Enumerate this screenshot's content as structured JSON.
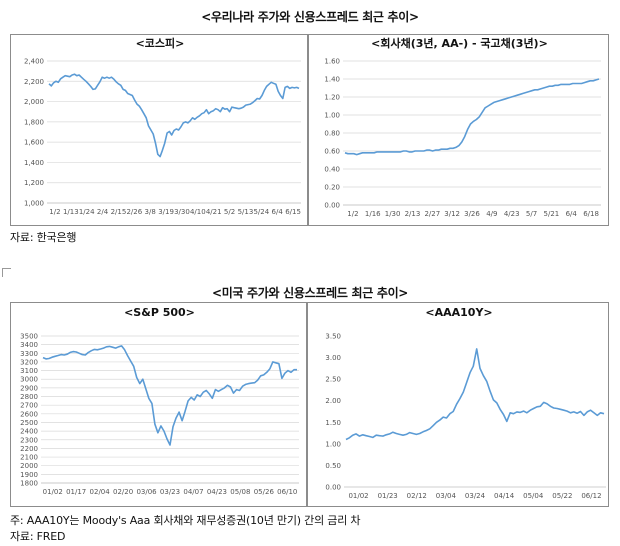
{
  "korea": {
    "title": "<우리나라 주가와 신용스프레드 최근 추이>",
    "source": "자료: 한국은행"
  },
  "us": {
    "title": "<미국 주가와 신용스프레드 최근 추이>",
    "note": "주: AAA10Y는 Moody's Aaa 회사채와 재무성증권(10년 만기) 간의 금리 차",
    "source": "자료: FRED"
  },
  "chart_data": [
    {
      "id": "kospi",
      "type": "line",
      "title": "<코스피>",
      "color": "#5b9bd5",
      "ylim": [
        1000,
        2400
      ],
      "yticks": [
        1000,
        1200,
        1400,
        1600,
        1800,
        2000,
        2200,
        2400
      ],
      "ytick_labels": [
        "1,000",
        "1,200",
        "1,400",
        "1,600",
        "1,800",
        "2,000",
        "2,200",
        "2,400"
      ],
      "xtick_labels": [
        "1/2",
        "1/13",
        "1/24",
        "2/4",
        "2/15",
        "2/26",
        "3/8",
        "3/19",
        "3/30",
        "4/10",
        "4/21",
        "5/2",
        "5/13",
        "5/24",
        "6/4",
        "6/15"
      ],
      "grid": true,
      "y": [
        2175,
        2155,
        2185,
        2200,
        2190,
        2225,
        2240,
        2255,
        2250,
        2245,
        2262,
        2270,
        2255,
        2262,
        2240,
        2220,
        2200,
        2175,
        2150,
        2120,
        2125,
        2160,
        2195,
        2240,
        2230,
        2240,
        2230,
        2240,
        2222,
        2195,
        2175,
        2160,
        2120,
        2110,
        2080,
        2070,
        2060,
        2015,
        1975,
        1955,
        1920,
        1880,
        1840,
        1760,
        1720,
        1680,
        1590,
        1480,
        1457,
        1520,
        1590,
        1690,
        1705,
        1670,
        1715,
        1730,
        1720,
        1750,
        1790,
        1800,
        1790,
        1810,
        1840,
        1825,
        1845,
        1860,
        1880,
        1890,
        1920,
        1880,
        1900,
        1910,
        1930,
        1920,
        1900,
        1940,
        1925,
        1930,
        1900,
        1945,
        1940,
        1935,
        1930,
        1935,
        1945,
        1965,
        1970,
        1975,
        1990,
        2010,
        2030,
        2025,
        2060,
        2110,
        2150,
        2170,
        2190,
        2180,
        2170,
        2100,
        2060,
        2030,
        2140,
        2150,
        2130,
        2140,
        2135,
        2140,
        2130
      ]
    },
    {
      "id": "kr-spread",
      "type": "line",
      "title": "<회사채(3년, AA-) - 국고채(3년)>",
      "color": "#5b9bd5",
      "ylim": [
        0,
        1.6
      ],
      "yticks": [
        0,
        0.2,
        0.4,
        0.6,
        0.8,
        1.0,
        1.2,
        1.4,
        1.6
      ],
      "ytick_labels": [
        "0.00",
        "0.20",
        "0.40",
        "0.60",
        "0.80",
        "1.00",
        "1.20",
        "1.40",
        "1.60"
      ],
      "xtick_labels": [
        "1/2",
        "1/16",
        "1/30",
        "2/13",
        "2/27",
        "3/12",
        "3/26",
        "4/9",
        "4/23",
        "5/7",
        "5/21",
        "6/4",
        "6/18"
      ],
      "grid": true,
      "y": [
        0.58,
        0.57,
        0.57,
        0.57,
        0.56,
        0.57,
        0.58,
        0.58,
        0.58,
        0.58,
        0.58,
        0.59,
        0.59,
        0.59,
        0.59,
        0.59,
        0.59,
        0.59,
        0.59,
        0.59,
        0.6,
        0.6,
        0.59,
        0.59,
        0.6,
        0.6,
        0.6,
        0.6,
        0.61,
        0.61,
        0.6,
        0.61,
        0.61,
        0.62,
        0.62,
        0.62,
        0.63,
        0.63,
        0.64,
        0.66,
        0.7,
        0.76,
        0.84,
        0.9,
        0.93,
        0.95,
        0.98,
        1.03,
        1.08,
        1.1,
        1.12,
        1.14,
        1.15,
        1.16,
        1.17,
        1.18,
        1.19,
        1.2,
        1.21,
        1.22,
        1.23,
        1.24,
        1.25,
        1.26,
        1.27,
        1.28,
        1.28,
        1.29,
        1.3,
        1.31,
        1.32,
        1.32,
        1.33,
        1.33,
        1.34,
        1.34,
        1.34,
        1.34,
        1.35,
        1.35,
        1.35,
        1.35,
        1.36,
        1.37,
        1.38,
        1.38,
        1.39,
        1.4
      ]
    },
    {
      "id": "sp500",
      "type": "line",
      "title": "<S&P 500>",
      "color": "#5b9bd5",
      "ylim": [
        1800,
        3500
      ],
      "yticks": [
        1800,
        1900,
        2000,
        2100,
        2200,
        2300,
        2400,
        2500,
        2600,
        2700,
        2800,
        2900,
        3000,
        3100,
        3200,
        3300,
        3400,
        3500
      ],
      "ytick_labels": [
        "1800",
        "1900",
        "2000",
        "2100",
        "2200",
        "2300",
        "2400",
        "2500",
        "2600",
        "2700",
        "2800",
        "2900",
        "3000",
        "3100",
        "3200",
        "3300",
        "3400",
        "3500"
      ],
      "xtick_labels": [
        "01/02",
        "01/17",
        "02/04",
        "02/20",
        "03/06",
        "03/23",
        "04/07",
        "04/23",
        "05/08",
        "05/26",
        "06/10"
      ],
      "grid": true,
      "y": [
        3250,
        3235,
        3240,
        3255,
        3265,
        3275,
        3285,
        3280,
        3290,
        3310,
        3320,
        3315,
        3300,
        3285,
        3280,
        3310,
        3330,
        3345,
        3340,
        3350,
        3360,
        3375,
        3380,
        3370,
        3360,
        3375,
        3385,
        3340,
        3270,
        3210,
        3150,
        3020,
        2950,
        3000,
        2890,
        2780,
        2720,
        2480,
        2380,
        2460,
        2400,
        2310,
        2240,
        2450,
        2550,
        2620,
        2520,
        2630,
        2750,
        2790,
        2760,
        2820,
        2800,
        2850,
        2870,
        2830,
        2780,
        2880,
        2860,
        2880,
        2900,
        2930,
        2910,
        2840,
        2880,
        2870,
        2920,
        2940,
        2950,
        2955,
        2960,
        2990,
        3040,
        3050,
        3080,
        3120,
        3200,
        3190,
        3180,
        3010,
        3070,
        3100,
        3080,
        3110,
        3110
      ]
    },
    {
      "id": "aaa10y",
      "type": "line",
      "title": "<AAA10Y>",
      "color": "#5b9bd5",
      "ylim": [
        0,
        3.5
      ],
      "yticks": [
        0,
        0.5,
        1.0,
        1.5,
        2.0,
        2.5,
        3.0,
        3.5
      ],
      "ytick_labels": [
        "0.00",
        "0.50",
        "1.00",
        "1.50",
        "2.00",
        "2.50",
        "3.00",
        "3.50"
      ],
      "xtick_labels": [
        "01/02",
        "01/23",
        "02/12",
        "03/04",
        "03/24",
        "04/14",
        "05/04",
        "05/22",
        "06/12"
      ],
      "grid": false,
      "y": [
        1.1,
        1.14,
        1.2,
        1.23,
        1.18,
        1.21,
        1.19,
        1.17,
        1.15,
        1.2,
        1.19,
        1.18,
        1.21,
        1.23,
        1.27,
        1.24,
        1.22,
        1.2,
        1.22,
        1.26,
        1.24,
        1.22,
        1.24,
        1.28,
        1.31,
        1.35,
        1.42,
        1.5,
        1.55,
        1.62,
        1.6,
        1.7,
        1.75,
        1.92,
        2.05,
        2.2,
        2.42,
        2.65,
        2.8,
        3.2,
        2.75,
        2.58,
        2.45,
        2.22,
        2.02,
        1.95,
        1.8,
        1.68,
        1.52,
        1.72,
        1.7,
        1.74,
        1.73,
        1.76,
        1.72,
        1.78,
        1.82,
        1.86,
        1.87,
        1.96,
        1.93,
        1.87,
        1.83,
        1.82,
        1.8,
        1.78,
        1.76,
        1.72,
        1.74,
        1.71,
        1.75,
        1.66,
        1.74,
        1.78,
        1.72,
        1.66,
        1.72,
        1.7
      ]
    }
  ]
}
